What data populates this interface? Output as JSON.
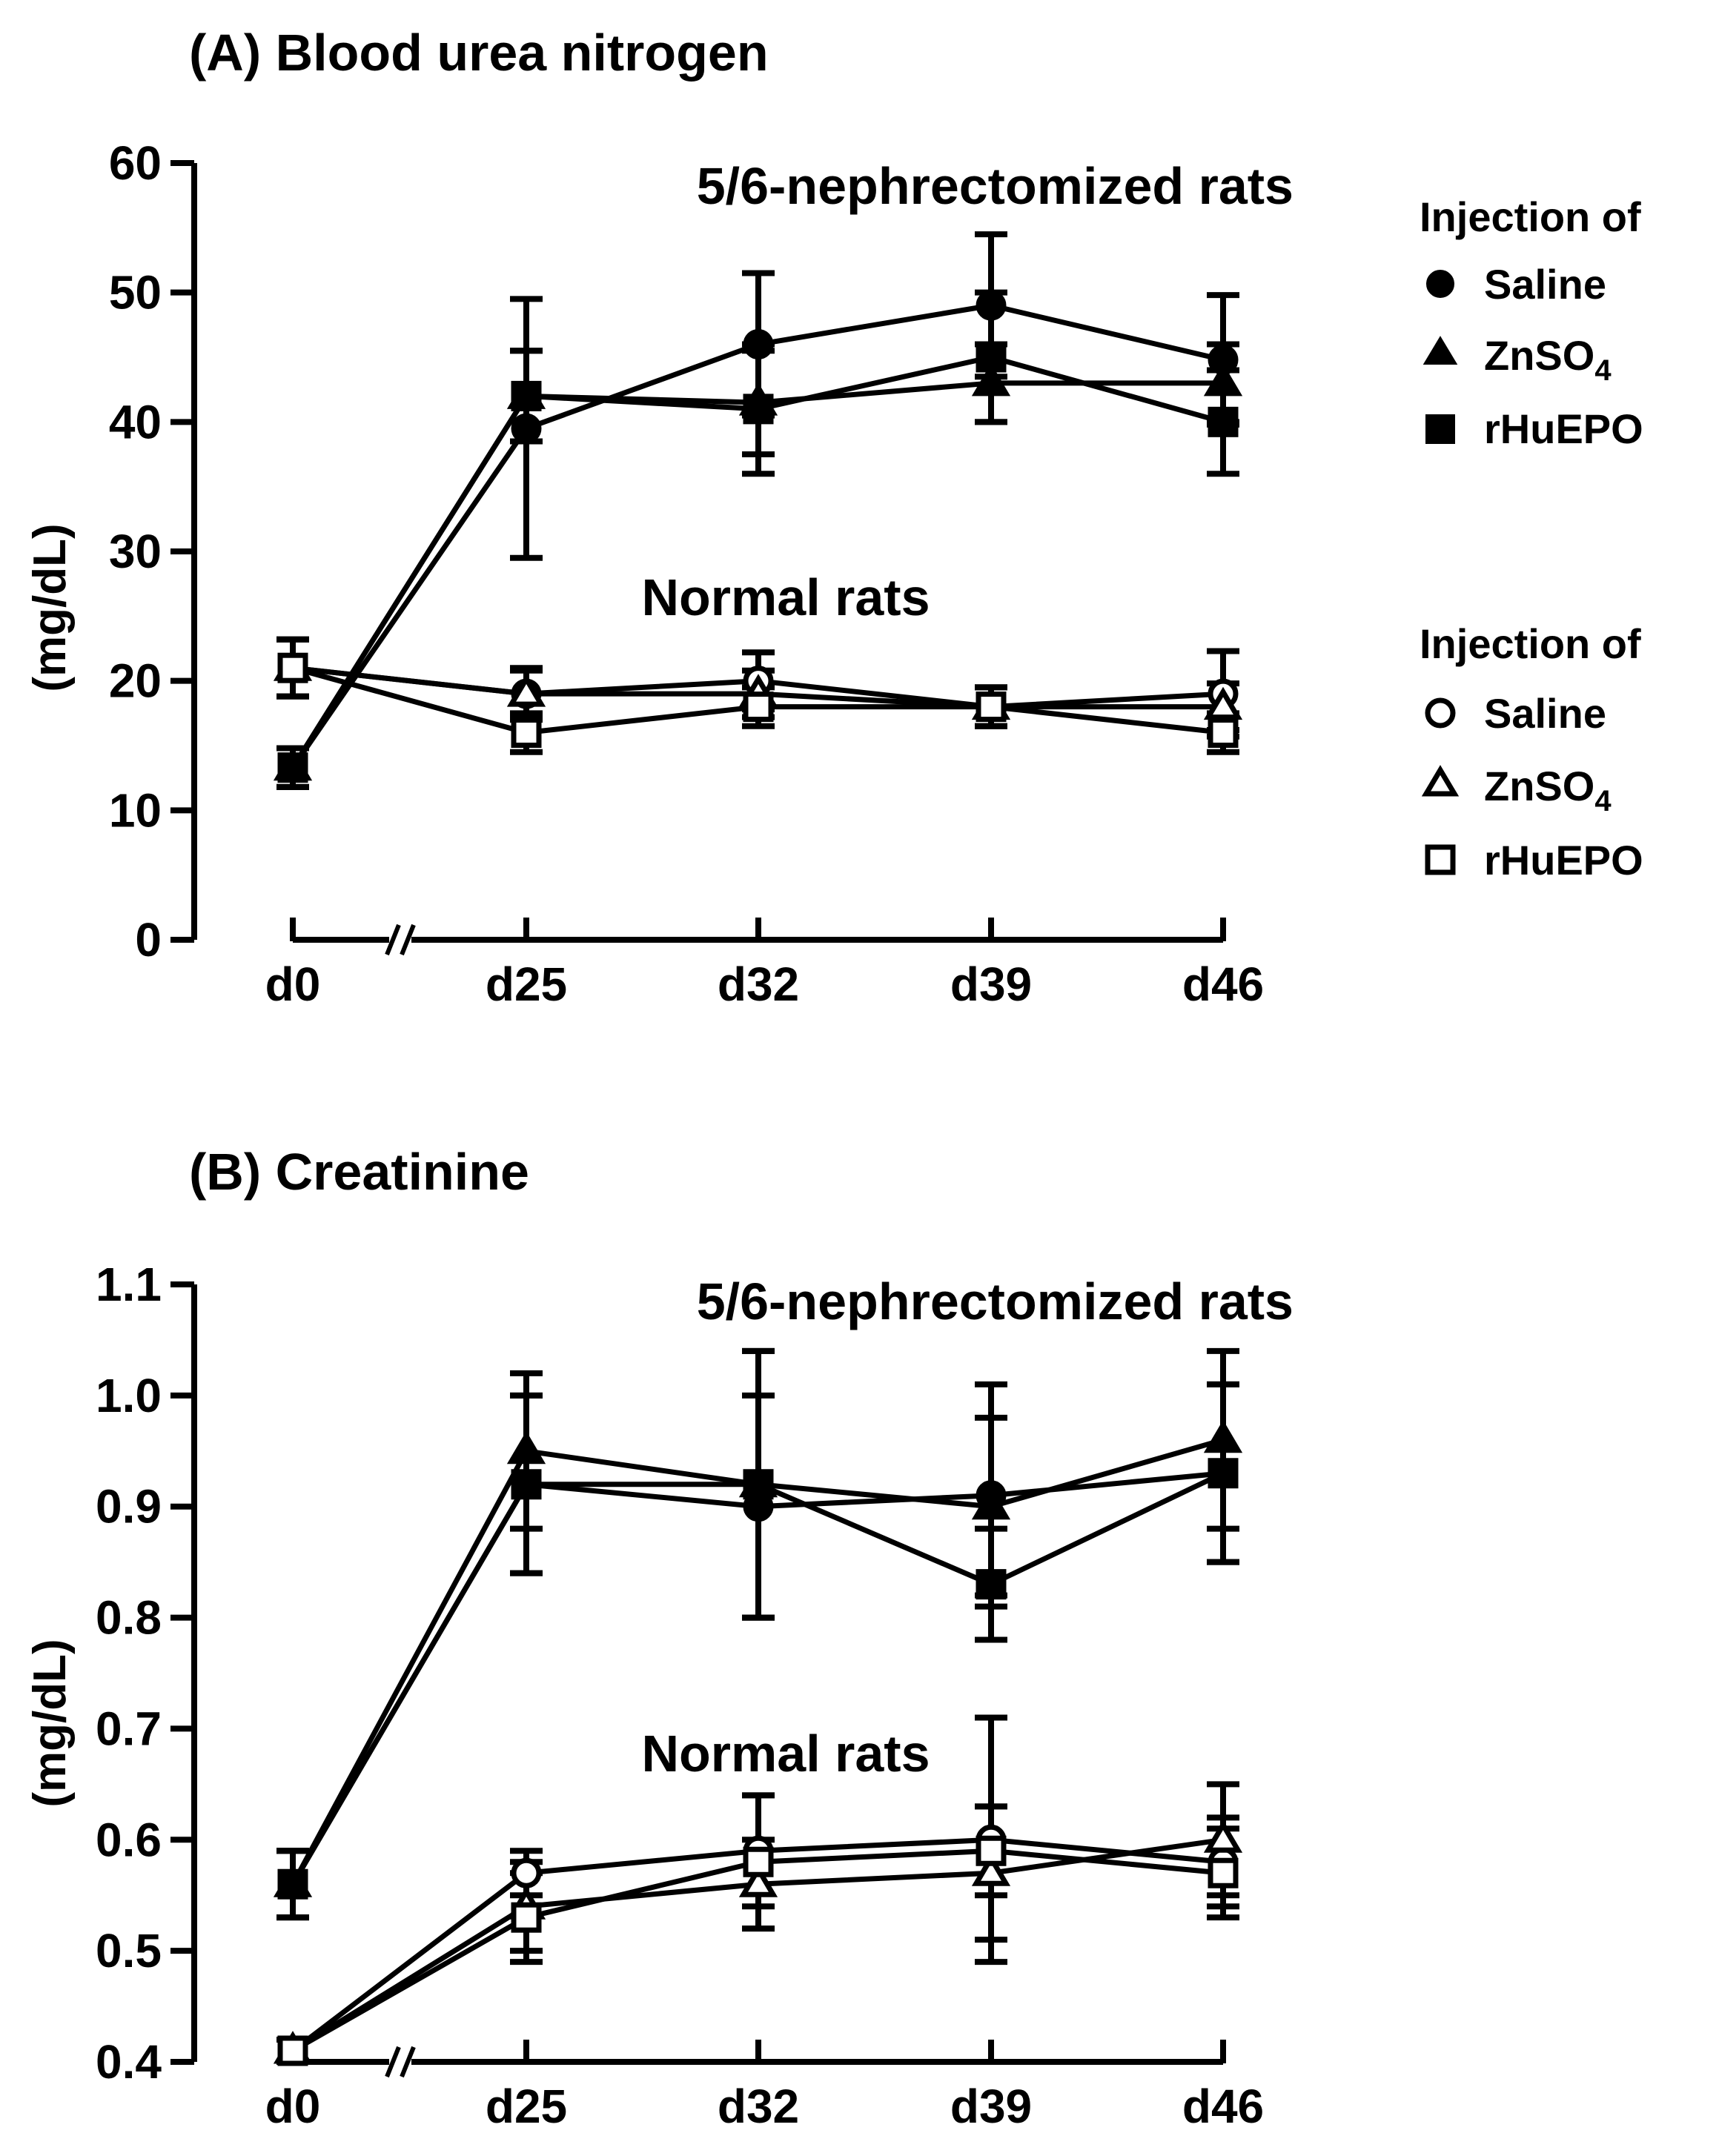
{
  "legend": {
    "nephrectomized_heading": "Injection of",
    "normal_heading": "Injection of",
    "items": [
      {
        "label": "Saline",
        "marker": "circle",
        "filled": true
      },
      {
        "label": "ZnSO",
        "sub": "4",
        "marker": "triangle",
        "filled": true
      },
      {
        "label": "rHuEPO",
        "marker": "square",
        "filled": true
      },
      {
        "label": "Saline",
        "marker": "circle",
        "filled": false
      },
      {
        "label": "ZnSO",
        "sub": "4",
        "marker": "triangle",
        "filled": false
      },
      {
        "label": "rHuEPO",
        "marker": "square",
        "filled": false
      }
    ]
  },
  "chart_data": [
    {
      "type": "line",
      "title": "(A) Blood urea nitrogen",
      "ylabel": "(mg/dL)",
      "xlabel": "",
      "categories": [
        "d0",
        "d25",
        "d32",
        "d39",
        "d46"
      ],
      "axis_break": "//",
      "ylim": [
        0,
        60
      ],
      "yticks": [
        0,
        10,
        20,
        30,
        40,
        50,
        60
      ],
      "ytick_labels": [
        "0",
        "10",
        "20",
        "30",
        "40",
        "50",
        "60"
      ],
      "group_labels": [
        "5/6-nephrectomized rats",
        "Normal rats"
      ],
      "series": [
        {
          "name": "Saline (5/6-nephrectomized)",
          "marker": "circle",
          "filled": true,
          "values": [
            13.3,
            39.5,
            46,
            49,
            44.8
          ],
          "error": [
            1.5,
            10,
            5.5,
            5.5,
            5
          ]
        },
        {
          "name": "ZnSO4 (5/6-nephrectomized)",
          "marker": "triangle",
          "filled": true,
          "values": [
            13.3,
            42,
            41.5,
            43,
            43
          ],
          "error": [
            1.5,
            3.5,
            4,
            3,
            3
          ]
        },
        {
          "name": "rHuEPO (5/6-nephrectomized)",
          "marker": "square",
          "filled": true,
          "values": [
            13.3,
            42,
            41,
            45,
            40
          ],
          "error": [
            1.5,
            3.5,
            5,
            5,
            4
          ]
        },
        {
          "name": "Saline (Normal)",
          "marker": "circle",
          "filled": false,
          "values": [
            21,
            19,
            20,
            18,
            19
          ],
          "error": [
            2.2,
            2,
            2.2,
            1.5,
            3.3
          ]
        },
        {
          "name": "ZnSO4 (Normal)",
          "marker": "triangle",
          "filled": false,
          "values": [
            21,
            19,
            19,
            18,
            18
          ],
          "error": [
            2.2,
            1.8,
            1.8,
            1.5,
            1.8
          ]
        },
        {
          "name": "rHuEPO (Normal)",
          "marker": "square",
          "filled": false,
          "values": [
            21,
            16,
            18,
            18,
            16
          ],
          "error": [
            2.2,
            1.5,
            1.5,
            1.5,
            1.5
          ]
        }
      ]
    },
    {
      "type": "line",
      "title": "(B) Creatinine",
      "ylabel": "(mg/dL)",
      "xlabel": "",
      "categories": [
        "d0",
        "d25",
        "d32",
        "d39",
        "d46"
      ],
      "axis_break": "//",
      "ylim": [
        0.4,
        1.1
      ],
      "yticks": [
        0.4,
        0.5,
        0.6,
        0.7,
        0.8,
        0.9,
        1.0,
        1.1
      ],
      "ytick_labels": [
        "0.4",
        "0.5",
        "0.6",
        "0.7",
        "0.8",
        "0.9",
        "1.0",
        "1.1"
      ],
      "group_labels": [
        "5/6-nephrectomized rats",
        "Normal rats"
      ],
      "series": [
        {
          "name": "Saline (5/6-nephrectomized)",
          "marker": "circle",
          "filled": true,
          "values": [
            0.56,
            0.92,
            0.9,
            0.91,
            0.93
          ],
          "error": [
            0.03,
            0.08,
            0.1,
            0.1,
            0.08
          ]
        },
        {
          "name": "ZnSO4 (5/6-nephrectomized)",
          "marker": "triangle",
          "filled": true,
          "values": [
            0.56,
            0.95,
            0.92,
            0.9,
            0.96
          ],
          "error": [
            0.03,
            0.07,
            0.12,
            0.08,
            0.08
          ]
        },
        {
          "name": "rHuEPO (5/6-nephrectomized)",
          "marker": "square",
          "filled": true,
          "values": [
            0.56,
            0.92,
            0.92,
            0.83,
            0.93
          ],
          "error": [
            0.03,
            0.08,
            0.12,
            0.05,
            0.08
          ]
        },
        {
          "name": "Saline (Normal)",
          "marker": "circle",
          "filled": false,
          "values": [
            0.41,
            0.57,
            0.59,
            0.6,
            0.58
          ],
          "error": [
            0.01,
            0.02,
            0.05,
            0.11,
            0.04
          ]
        },
        {
          "name": "ZnSO4 (Normal)",
          "marker": "triangle",
          "filled": false,
          "values": [
            0.41,
            0.54,
            0.56,
            0.57,
            0.6
          ],
          "error": [
            0.01,
            0.04,
            0.04,
            0.06,
            0.05
          ]
        },
        {
          "name": "rHuEPO (Normal)",
          "marker": "square",
          "filled": false,
          "values": [
            0.41,
            0.53,
            0.58,
            0.59,
            0.57
          ],
          "error": [
            0.01,
            0.04,
            0.06,
            0.04,
            0.04
          ]
        }
      ]
    }
  ]
}
